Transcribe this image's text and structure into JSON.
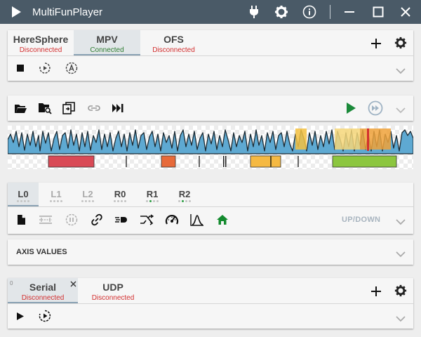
{
  "window": {
    "title": "MultiFunPlayer"
  },
  "colors": {
    "titlebar": "#4a5a67",
    "connected": "#2e7d32",
    "disconnected": "#d32f2f",
    "play": "#1b8a3a",
    "home": "#138a2e"
  },
  "media_sources": {
    "tabs": [
      {
        "name": "HereSphere",
        "status": "Disconnected",
        "state": "disconnected"
      },
      {
        "name": "MPV",
        "status": "Connected",
        "state": "connected",
        "selected": true
      },
      {
        "name": "OFS",
        "status": "Disconnected",
        "state": "disconnected"
      }
    ],
    "toolbar_icons": [
      "stop-icon",
      "auto-connect-icon",
      "auto-start-icon"
    ],
    "header_icons": [
      "add-icon",
      "gear-icon"
    ]
  },
  "script_panel": {
    "toolbar_icons": [
      "open-folder-icon",
      "search-folder-icon",
      "copy-icon",
      "link-icon",
      "skip-icon"
    ],
    "right_icons": [
      "play-icon",
      "fast-forward-icon"
    ]
  },
  "axes": {
    "tabs": [
      {
        "name": "L0",
        "enabled": true,
        "active": true,
        "dot_on": -1
      },
      {
        "name": "L1",
        "enabled": false,
        "dot_on": -1
      },
      {
        "name": "L2",
        "enabled": false,
        "dot_on": -1
      },
      {
        "name": "R0",
        "enabled": true,
        "dot_on": -1
      },
      {
        "name": "R1",
        "enabled": true,
        "dot_on": 1
      },
      {
        "name": "R2",
        "enabled": true,
        "dot_on": 1
      }
    ],
    "toolbar_icons": [
      "file-icon",
      "wave-settings-icon",
      "pause-timer-icon",
      "link-icon",
      "speed-icon",
      "transform-icon",
      "gauge-icon",
      "curve-icon",
      "home-icon"
    ],
    "motion_label": "UP/DOWN"
  },
  "axis_values": {
    "title": "AXIS VALUES"
  },
  "outputs": {
    "tabs": [
      {
        "name": "Serial",
        "status": "Disconnected",
        "state": "disconnected",
        "selected": true,
        "index": "0"
      },
      {
        "name": "UDP",
        "status": "Disconnected",
        "state": "disconnected"
      }
    ],
    "toolbar_icons": [
      "play-icon",
      "auto-start-icon"
    ],
    "header_icons": [
      "add-icon",
      "gear-icon"
    ]
  }
}
